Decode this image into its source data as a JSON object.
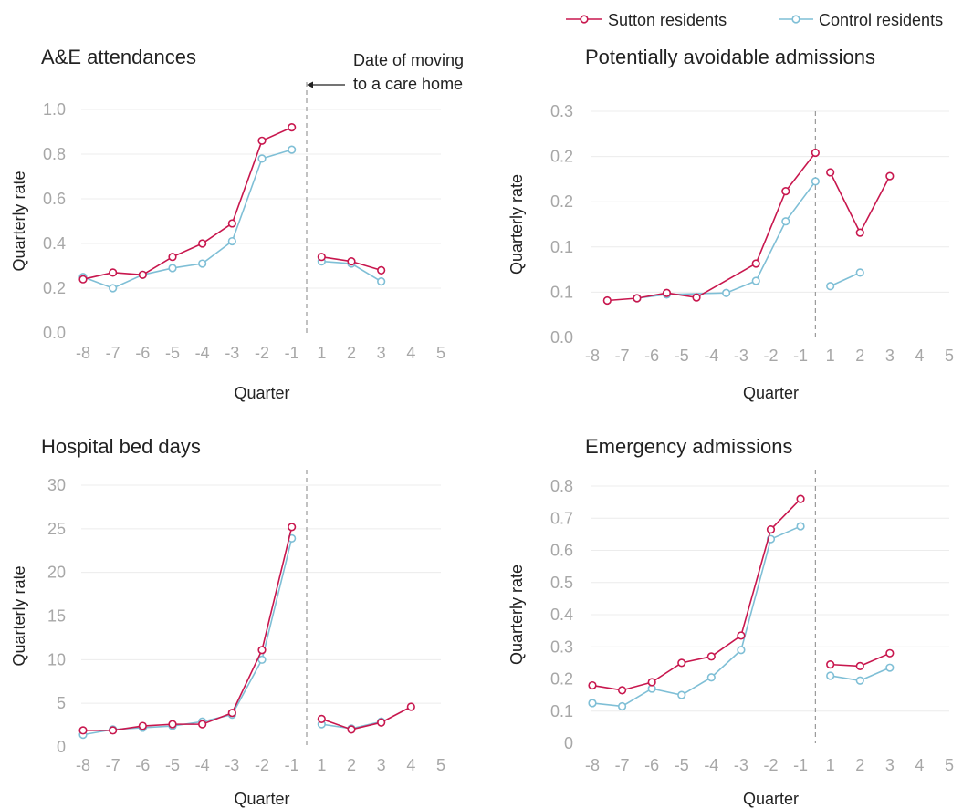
{
  "legend": {
    "items": [
      {
        "label": "Sutton residents",
        "color": "#c8174e"
      },
      {
        "label": "Control residents",
        "color": "#7fbfd6"
      }
    ],
    "placement": "top-right"
  },
  "annotation": {
    "line1": "Date of moving",
    "line2": "to a care home",
    "arrow_icon": "left-arrow-icon"
  },
  "colors": {
    "sutton": "#c8174e",
    "control": "#7fbfd6",
    "grid": "#ececec",
    "divider": "#9a9a9a",
    "tick": "#a7a7a7"
  },
  "chart_data": [
    {
      "type": "line",
      "title": "A&E attendances",
      "xlabel": "Quarter",
      "ylabel": "Quarterly rate",
      "xlim": [
        -8,
        5
      ],
      "x_ticks": [
        "-8",
        "-7",
        "-6",
        "-5",
        "-4",
        "-3",
        "-2",
        "-1",
        "1",
        "2",
        "3",
        "4",
        "5"
      ],
      "ylim": [
        0,
        1.0
      ],
      "y_ticks": [
        "0.0",
        "0.2",
        "0.4",
        "0.6",
        "0.8",
        "1.0"
      ],
      "grid": true,
      "series": [
        {
          "name": "Sutton residents",
          "x": [
            -8,
            -7,
            -6,
            -5,
            -4,
            -3,
            -2,
            -1,
            1,
            2,
            3
          ],
          "values": [
            0.24,
            0.27,
            0.26,
            0.34,
            0.4,
            0.49,
            0.86,
            0.92,
            0.34,
            0.32,
            0.28
          ]
        },
        {
          "name": "Control residents",
          "x": [
            -8,
            -7,
            -6,
            -5,
            -4,
            -3,
            -2,
            -1,
            1,
            2,
            3
          ],
          "values": [
            0.25,
            0.2,
            0.26,
            0.29,
            0.31,
            0.41,
            0.78,
            0.82,
            0.32,
            0.31,
            0.23
          ]
        }
      ]
    },
    {
      "type": "line",
      "title": "Potentially avoidable admissions",
      "xlabel": "Quarter",
      "ylabel": "Quarterly rate",
      "xlim": [
        -8,
        5
      ],
      "x_ticks": [
        "-8",
        "-7",
        "-6",
        "-5",
        "-4",
        "-3",
        "-2",
        "-1",
        "1",
        "2",
        "3",
        "4",
        "5"
      ],
      "ylim": [
        0,
        0.3
      ],
      "y_ticks": [
        "0.0",
        "0.1",
        "0.1",
        "0.2",
        "0.2",
        "0.3"
      ],
      "grid": true,
      "series": [
        {
          "name": "Sutton residents",
          "x": [
            -7.5,
            -6.5,
            -5.5,
            -4.5,
            -2.5,
            -1.5,
            -0.5
          ],
          "values": [
            0.049,
            0.052,
            0.059,
            0.053,
            0.098,
            0.194,
            0.245
          ],
          "x2": [
            1,
            2,
            3
          ],
          "values2": [
            0.219,
            0.139,
            0.214
          ]
        },
        {
          "name": "Control residents",
          "x": [
            -6.5,
            -5.5,
            -3.5,
            -2.5,
            -1.5,
            -0.5
          ],
          "values": [
            0.052,
            0.057,
            0.059,
            0.075,
            0.154,
            0.207
          ],
          "x2": [
            1,
            2
          ],
          "values2": [
            0.068,
            0.086
          ]
        }
      ]
    },
    {
      "type": "line",
      "title": "Hospital bed days",
      "xlabel": "Quarter",
      "ylabel": "Quarterly rate",
      "xlim": [
        -8,
        5
      ],
      "x_ticks": [
        "-8",
        "-7",
        "-6",
        "-5",
        "-4",
        "-3",
        "-2",
        "-1",
        "1",
        "2",
        "3",
        "4",
        "5"
      ],
      "ylim": [
        0,
        30
      ],
      "y_ticks": [
        "0",
        "5",
        "10",
        "15",
        "20",
        "25",
        "30"
      ],
      "grid": true,
      "series": [
        {
          "name": "Sutton residents",
          "x": [
            -8,
            -7,
            -6,
            -5,
            -4,
            -3,
            -2,
            -1,
            1,
            2,
            3,
            4
          ],
          "values": [
            1.9,
            1.9,
            2.4,
            2.6,
            2.6,
            3.9,
            11.1,
            25.2,
            3.2,
            2.0,
            2.8,
            4.6
          ]
        },
        {
          "name": "Control residents",
          "x": [
            -8,
            -7,
            -6,
            -5,
            -4,
            -3,
            -2,
            -1,
            1,
            2,
            3
          ],
          "values": [
            1.4,
            2.0,
            2.2,
            2.4,
            2.9,
            3.7,
            10.0,
            23.9,
            2.6,
            2.1,
            2.9
          ]
        }
      ]
    },
    {
      "type": "line",
      "title": "Emergency admissions",
      "xlabel": "Quarter",
      "ylabel": "Quarterly rate",
      "xlim": [
        -8,
        5
      ],
      "x_ticks": [
        "-8",
        "-7",
        "-6",
        "-5",
        "-4",
        "-3",
        "-2",
        "-1",
        "1",
        "2",
        "3",
        "4",
        "5"
      ],
      "ylim": [
        0,
        0.8
      ],
      "y_ticks": [
        "0",
        "0.1",
        "0.2",
        "0.3",
        "0.4",
        "0.5",
        "0.6",
        "0.7",
        "0.8"
      ],
      "grid": true,
      "series": [
        {
          "name": "Sutton residents",
          "x": [
            -8,
            -7,
            -6,
            -5,
            -4,
            -3,
            -2,
            -1,
            1,
            2,
            3
          ],
          "values": [
            0.18,
            0.165,
            0.19,
            0.25,
            0.27,
            0.335,
            0.665,
            0.76,
            0.245,
            0.24,
            0.28
          ]
        },
        {
          "name": "Control residents",
          "x": [
            -8,
            -7,
            -6,
            -5,
            -4,
            -3,
            -2,
            -1,
            1,
            2,
            3
          ],
          "values": [
            0.125,
            0.115,
            0.17,
            0.15,
            0.205,
            0.29,
            0.635,
            0.675,
            0.21,
            0.195,
            0.235
          ]
        }
      ]
    }
  ]
}
